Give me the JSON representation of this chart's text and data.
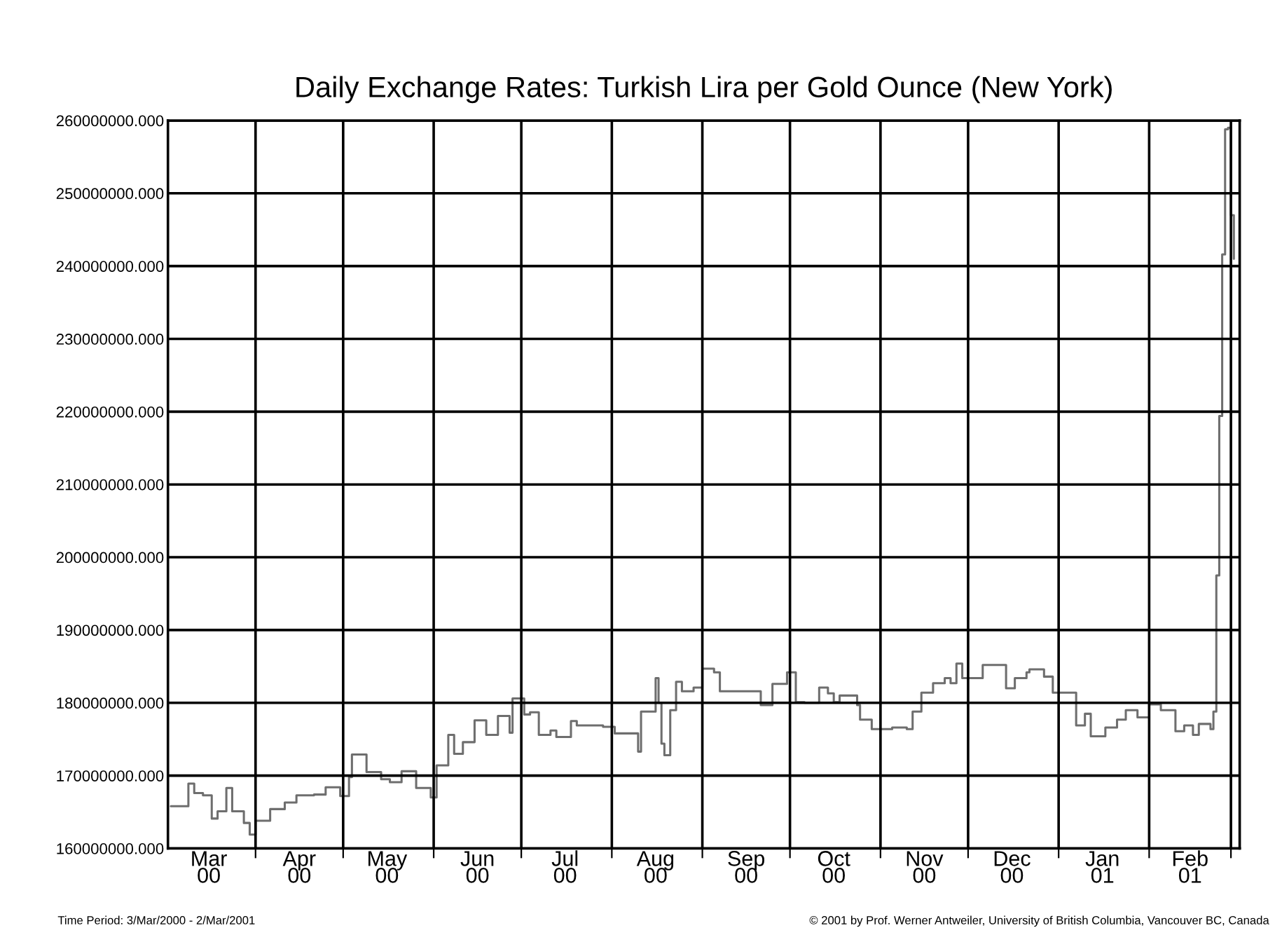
{
  "chart_data": {
    "type": "step",
    "title": "Daily Exchange Rates: Turkish Lira per Gold Ounce (New York)",
    "annotations": [
      "Time Period: 3/Mar/2000 - 2/Mar/2001",
      "© 2001 by Prof. Werner Antweiler, University of British Columbia, Vancouver BC, Canada"
    ],
    "series": [
      {
        "color": "#6e6e6e",
        "x": [
          "2000-03-03",
          "2000-03-08",
          "2000-03-09",
          "2000-03-11",
          "2000-03-14",
          "2000-03-17",
          "2000-03-19",
          "2000-03-22",
          "2000-03-24",
          "2000-03-28",
          "2000-03-30",
          "2000-04-01",
          "2000-04-06",
          "2000-04-11",
          "2000-04-15",
          "2000-04-21",
          "2000-04-25",
          "2000-04-30",
          "2000-05-03",
          "2000-05-04",
          "2000-05-09",
          "2000-05-14",
          "2000-05-17",
          "2000-05-21",
          "2000-05-26",
          "2000-05-31",
          "2000-06-02",
          "2000-06-06",
          "2000-06-08",
          "2000-06-11",
          "2000-06-15",
          "2000-06-19",
          "2000-06-23",
          "2000-06-27",
          "2000-06-28",
          "2000-07-02",
          "2000-07-04",
          "2000-07-07",
          "2000-07-11",
          "2000-07-13",
          "2000-07-18",
          "2000-07-20",
          "2000-07-29",
          "2000-08-02",
          "2000-08-06",
          "2000-08-10",
          "2000-08-11",
          "2000-08-15",
          "2000-08-16",
          "2000-08-17",
          "2000-08-18",
          "2000-08-19",
          "2000-08-21",
          "2000-08-23",
          "2000-08-25",
          "2000-08-29",
          "2000-09-01",
          "2000-09-05",
          "2000-09-07",
          "2000-09-13",
          "2000-09-18",
          "2000-09-21",
          "2000-09-25",
          "2000-09-30",
          "2000-10-03",
          "2000-10-06",
          "2000-10-11",
          "2000-10-14",
          "2000-10-16",
          "2000-10-18",
          "2000-10-24",
          "2000-10-25",
          "2000-10-29",
          "2000-11-01",
          "2000-11-05",
          "2000-11-10",
          "2000-11-12",
          "2000-11-15",
          "2000-11-19",
          "2000-11-23",
          "2000-11-25",
          "2000-11-27",
          "2000-11-29",
          "2000-12-05",
          "2000-12-06",
          "2000-12-08",
          "2000-12-14",
          "2000-12-17",
          "2000-12-21",
          "2000-12-22",
          "2000-12-27",
          "2000-12-30",
          "2001-01-05",
          "2001-01-07",
          "2001-01-10",
          "2001-01-12",
          "2001-01-17",
          "2001-01-21",
          "2001-01-24",
          "2001-01-28",
          "2001-02-01",
          "2001-02-05",
          "2001-02-10",
          "2001-02-13",
          "2001-02-16",
          "2001-02-18",
          "2001-02-22",
          "2001-02-23",
          "2001-02-24",
          "2001-02-25",
          "2001-02-26",
          "2001-02-27",
          "2001-02-28",
          "2001-03-01",
          "2001-03-02"
        ],
        "values": [
          165800000,
          165800000,
          168900000,
          167600000,
          167300000,
          164100000,
          165100000,
          168300000,
          165100000,
          163500000,
          161900000,
          163800000,
          165400000,
          166300000,
          167300000,
          167400000,
          168400000,
          167200000,
          169800000,
          172900000,
          170500000,
          169500000,
          169100000,
          170600000,
          168300000,
          167000000,
          171400000,
          175600000,
          173000000,
          174600000,
          177600000,
          175600000,
          178200000,
          175900000,
          180600000,
          178400000,
          178700000,
          175600000,
          176200000,
          175300000,
          177500000,
          176900000,
          176700000,
          175800000,
          175800000,
          173300000,
          178800000,
          178800000,
          183400000,
          180000000,
          174400000,
          172800000,
          179000000,
          182900000,
          181600000,
          182100000,
          184700000,
          184200000,
          181600000,
          181600000,
          181600000,
          179700000,
          182600000,
          184200000,
          180100000,
          180000000,
          182100000,
          181300000,
          180100000,
          181000000,
          179700000,
          177700000,
          176400000,
          176400000,
          176600000,
          176400000,
          178800000,
          181400000,
          182700000,
          183400000,
          182700000,
          185400000,
          183400000,
          183400000,
          185200000,
          185200000,
          182000000,
          183400000,
          184200000,
          184600000,
          183600000,
          181400000,
          181400000,
          176900000,
          178500000,
          175400000,
          176600000,
          177700000,
          179000000,
          178000000,
          179800000,
          179000000,
          176100000,
          176900000,
          175600000,
          177100000,
          176400000,
          178800000,
          197500000,
          219400000,
          241600000,
          258800000,
          259000000,
          247000000,
          241000000
        ]
      }
    ],
    "xlim": [
      "2000-03-02",
      "2001-03-04"
    ],
    "xticks": [
      {
        "value": "2000-04-01",
        "label": null
      },
      {
        "value": "2000-05-01",
        "label": null
      },
      {
        "value": "2000-06-01",
        "label": null
      },
      {
        "value": "2000-07-01",
        "label": null
      },
      {
        "value": "2000-08-01",
        "label": null
      },
      {
        "value": "2000-09-01",
        "label": null
      },
      {
        "value": "2000-10-01",
        "label": null
      },
      {
        "value": "2000-11-01",
        "label": null
      },
      {
        "value": "2000-12-01",
        "label": null
      },
      {
        "value": "2001-01-01",
        "label": null
      },
      {
        "value": "2001-02-01",
        "label": null
      },
      {
        "value": "2001-03-01",
        "label": null
      },
      {
        "value": "2000-03-16",
        "label": "Mar\n00"
      },
      {
        "value": "2000-04-16",
        "label": "Apr\n00"
      },
      {
        "value": "2000-05-16",
        "label": "May\n00"
      },
      {
        "value": "2000-06-16",
        "label": "Jun\n00"
      },
      {
        "value": "2000-07-16",
        "label": "Jul\n00"
      },
      {
        "value": "2000-08-16",
        "label": "Aug\n00"
      },
      {
        "value": "2000-09-16",
        "label": "Sep\n00"
      },
      {
        "value": "2000-10-16",
        "label": "Oct\n00"
      },
      {
        "value": "2000-11-16",
        "label": "Nov\n00"
      },
      {
        "value": "2000-12-16",
        "label": "Dec\n00"
      },
      {
        "value": "2001-01-16",
        "label": "Jan\n01"
      },
      {
        "value": "2001-02-15",
        "label": "Feb\n01"
      }
    ],
    "ylim": [
      160000000,
      260000000
    ],
    "yticks": [
      {
        "value": 160000000,
        "label": "160000000.000"
      },
      {
        "value": 170000000,
        "label": "170000000.000"
      },
      {
        "value": 180000000,
        "label": "180000000.000"
      },
      {
        "value": 190000000,
        "label": "190000000.000"
      },
      {
        "value": 200000000,
        "label": "200000000.000"
      },
      {
        "value": 210000000,
        "label": "210000000.000"
      },
      {
        "value": 220000000,
        "label": "220000000.000"
      },
      {
        "value": 230000000,
        "label": "230000000.000"
      },
      {
        "value": 240000000,
        "label": "240000000.000"
      },
      {
        "value": 250000000,
        "label": "250000000.000"
      },
      {
        "value": 260000000,
        "label": "260000000.000"
      }
    ],
    "grid": true
  }
}
